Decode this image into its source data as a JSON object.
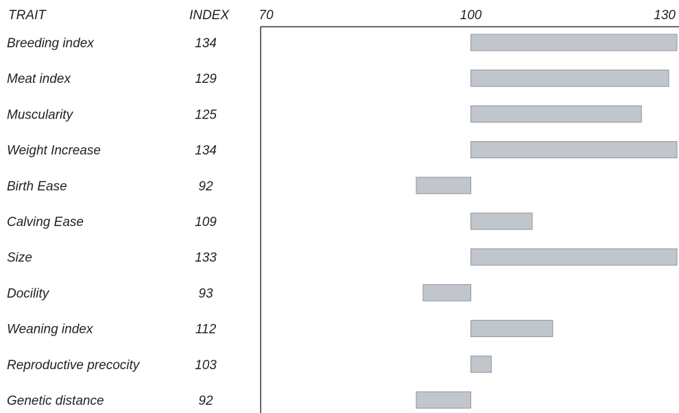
{
  "chart_data": {
    "type": "bar",
    "orientation": "horizontal",
    "column_headers": {
      "trait": "TRAIT",
      "index": "INDEX"
    },
    "categories": [
      "Breeding index",
      "Meat index",
      "Muscularity",
      "Weight Increase",
      "Birth Ease",
      "Calving Ease",
      "Size",
      "Docility",
      "Weaning index",
      "Reproductive precocity",
      "Genetic distance"
    ],
    "values": [
      134,
      129,
      125,
      134,
      92,
      109,
      133,
      93,
      112,
      103,
      92
    ],
    "value_labels": [
      "134",
      "129",
      "125",
      "134",
      "92",
      "109",
      "133",
      "93",
      "112",
      "103",
      "92"
    ],
    "baseline": 100,
    "xlim": [
      70,
      130
    ],
    "xticks": [
      "70",
      "100",
      "130"
    ],
    "title": "",
    "xlabel": "",
    "ylabel": "",
    "grid": false,
    "legend": "none",
    "colors": {
      "bar_fill": "#c1c5cc",
      "bar_stroke": "#8e939b",
      "axis": "#333333",
      "text": "#222222"
    }
  }
}
